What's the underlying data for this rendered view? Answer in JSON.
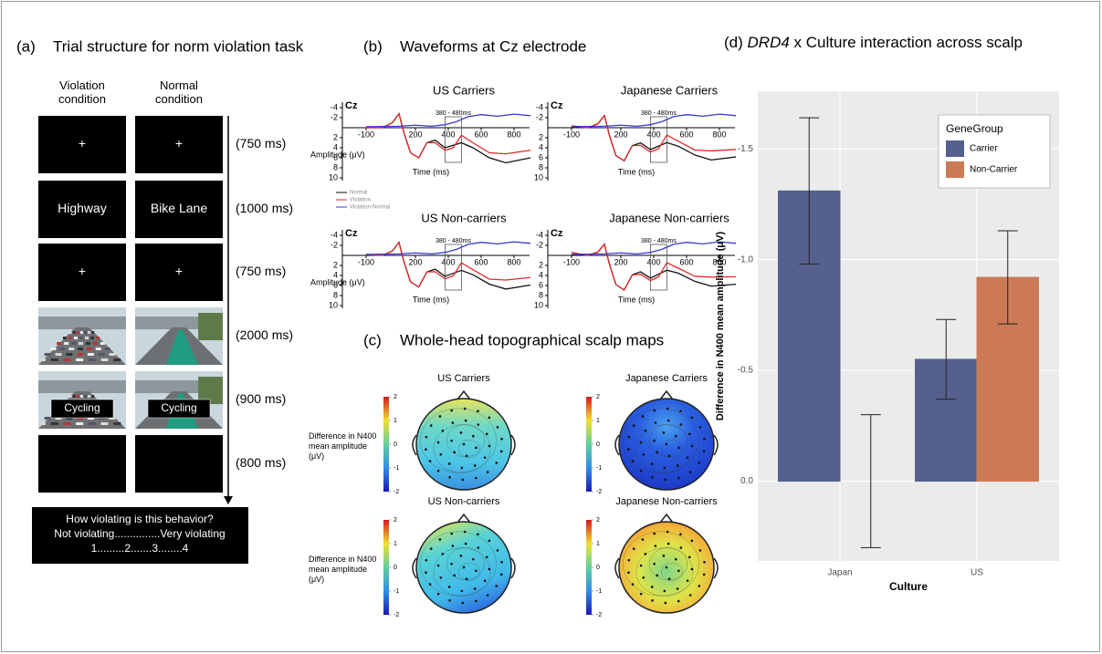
{
  "panel_a": {
    "label": "(a)",
    "title": "Trial structure for norm violation task",
    "conditions": [
      "Violation condition",
      "Normal condition"
    ],
    "rows": [
      {
        "violation": "+",
        "normal": "+",
        "time": "(750 ms)"
      },
      {
        "violation": "Highway",
        "normal": "Bike Lane",
        "time": "(1000 ms)"
      },
      {
        "violation": "+",
        "normal": "+",
        "time": "(750 ms)"
      },
      {
        "time": "(2000 ms)"
      },
      {
        "violation": "Cycling",
        "normal": "Cycling",
        "time": "(900 ms)"
      },
      {
        "time": "(800 ms)"
      }
    ],
    "rating": {
      "question": "How violating is this behavior?",
      "scale": "Not violating...............Very violating",
      "points": "1.........2.......3........4"
    }
  },
  "panel_b": {
    "label": "(b)",
    "title": "Waveforms at Cz electrode",
    "electrode": "Cz",
    "plots": [
      "US Carriers",
      "Japanese Carriers",
      "US Non-carriers",
      "Japanese Non-carriers"
    ],
    "yticks": [
      -4,
      -2,
      2,
      4,
      6,
      8,
      10
    ],
    "xticks": [
      -100,
      200,
      400,
      600,
      800
    ],
    "ylabel": "Amplitude (μV)",
    "xlabel": "Time (ms)",
    "window": "380 - 480ms",
    "legend": [
      "Normal",
      "Violation",
      "Violation-Normal"
    ]
  },
  "panel_c": {
    "label": "(c)",
    "title": "Whole-head topographical scalp maps",
    "plots": [
      "US Carriers",
      "Japanese Carriers",
      "US Non-carriers",
      "Japanese Non-carriers"
    ],
    "colorbar_label": "Difference in N400 mean amplitude (μV)",
    "colorbar_ticks": [
      2,
      1,
      0,
      -1,
      -2
    ]
  },
  "chart_data": {
    "type": "bar",
    "panel_label": "(d)",
    "title_italic": "DRD4",
    "title": "x Culture interaction across scalp",
    "categories": [
      "Japan",
      "US"
    ],
    "series": [
      {
        "name": "Carrier",
        "color": "#56608f",
        "values": [
          -1.31,
          -0.55
        ],
        "errors": [
          0.33,
          0.18
        ]
      },
      {
        "name": "Non-Carrier",
        "color": "#cc7a56",
        "values": [
          0.0,
          -0.92
        ],
        "errors": [
          0.3,
          0.21
        ]
      }
    ],
    "ylim": [
      0.36,
      -1.76
    ],
    "yticks": [
      -1.5,
      {
        "value": -1,
        "label": "-1.0"
      },
      -0.5,
      {
        "value": 0,
        "label": "0.0"
      }
    ],
    "xlabel": "Culture",
    "ylabel": "Difference in N400 mean amplitude (μV)",
    "legend_title": "GeneGroup",
    "legend_position": "top-right",
    "grid": true
  }
}
